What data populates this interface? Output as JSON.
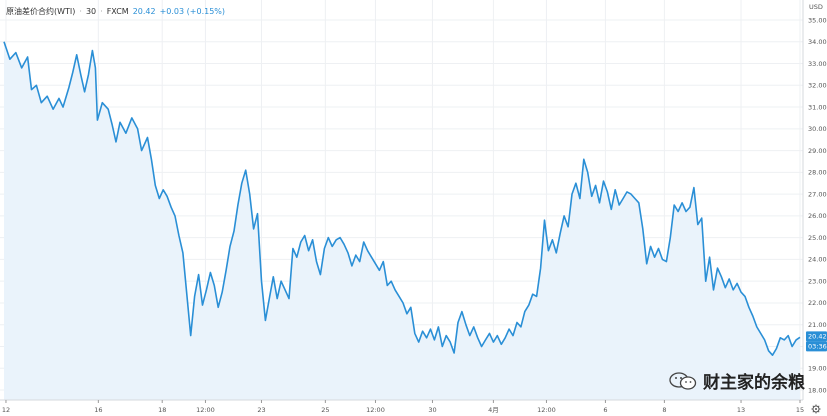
{
  "header": {
    "symbol": "原油差价合约(WTI)",
    "interval": "30",
    "exchange": "FXCM",
    "price": "20.42",
    "change": "+0.03 (+0.15%)"
  },
  "watermark": {
    "text": "财主家的余粮"
  },
  "colors": {
    "line": "#2a8fd6",
    "area": "#eaf3fb",
    "grid": "#eef0f3",
    "axis_text": "#555555"
  },
  "chart_data": {
    "type": "area",
    "title": "",
    "xlabel": "",
    "ylabel": "USD",
    "ylim": [
      18.0,
      35.0
    ],
    "y_ticks": [
      "35.00",
      "34.00",
      "33.00",
      "32.00",
      "31.00",
      "30.00",
      "29.00",
      "28.00",
      "27.00",
      "26.00",
      "25.00",
      "24.00",
      "23.00",
      "22.00",
      "21.00",
      "20.00",
      "19.00",
      "18.00"
    ],
    "x_ticks": [
      {
        "label": "12",
        "idx": 2
      },
      {
        "label": "16",
        "idx": 96
      },
      {
        "label": "18",
        "idx": 161
      },
      {
        "label": "12:00",
        "idx": 205
      },
      {
        "label": "23",
        "idx": 262
      },
      {
        "label": "25",
        "idx": 327
      },
      {
        "label": "12:00",
        "idx": 378
      },
      {
        "label": "30",
        "idx": 436
      },
      {
        "label": "4月",
        "idx": 498
      },
      {
        "label": "12:00",
        "idx": 552
      },
      {
        "label": "6",
        "idx": 612
      },
      {
        "label": "8",
        "idx": 672
      },
      {
        "label": "13",
        "idx": 750
      },
      {
        "label": "15",
        "idx": 810
      }
    ],
    "last_price_label": "20.42",
    "countdown_label": "03:36",
    "series": [
      {
        "points": [
          [
            0,
            34.0
          ],
          [
            6,
            33.2
          ],
          [
            12,
            33.5
          ],
          [
            18,
            32.8
          ],
          [
            24,
            33.3
          ],
          [
            28,
            31.8
          ],
          [
            33,
            32.0
          ],
          [
            38,
            31.2
          ],
          [
            44,
            31.5
          ],
          [
            50,
            30.9
          ],
          [
            56,
            31.4
          ],
          [
            60,
            31.0
          ],
          [
            66,
            31.9
          ],
          [
            70,
            32.6
          ],
          [
            74,
            33.4
          ],
          [
            78,
            32.5
          ],
          [
            82,
            31.7
          ],
          [
            86,
            32.5
          ],
          [
            90,
            33.6
          ],
          [
            93,
            32.8
          ],
          [
            95,
            30.4
          ],
          [
            100,
            31.2
          ],
          [
            106,
            30.9
          ],
          [
            110,
            30.2
          ],
          [
            114,
            29.4
          ],
          [
            118,
            30.3
          ],
          [
            124,
            29.8
          ],
          [
            130,
            30.5
          ],
          [
            136,
            30.0
          ],
          [
            140,
            29.0
          ],
          [
            146,
            29.6
          ],
          [
            150,
            28.6
          ],
          [
            154,
            27.4
          ],
          [
            158,
            26.8
          ],
          [
            162,
            27.2
          ],
          [
            166,
            26.9
          ],
          [
            170,
            26.4
          ],
          [
            174,
            26.0
          ],
          [
            178,
            25.1
          ],
          [
            182,
            24.3
          ],
          [
            186,
            22.4
          ],
          [
            190,
            20.5
          ],
          [
            194,
            22.3
          ],
          [
            198,
            23.3
          ],
          [
            202,
            21.9
          ],
          [
            206,
            22.6
          ],
          [
            210,
            23.4
          ],
          [
            214,
            22.8
          ],
          [
            218,
            21.8
          ],
          [
            222,
            22.5
          ],
          [
            226,
            23.5
          ],
          [
            230,
            24.6
          ],
          [
            234,
            25.3
          ],
          [
            238,
            26.5
          ],
          [
            242,
            27.5
          ],
          [
            246,
            28.1
          ],
          [
            250,
            27.0
          ],
          [
            254,
            25.4
          ],
          [
            258,
            26.1
          ],
          [
            262,
            23.0
          ],
          [
            266,
            21.2
          ],
          [
            270,
            22.2
          ],
          [
            274,
            23.2
          ],
          [
            278,
            22.2
          ],
          [
            282,
            23.0
          ],
          [
            286,
            22.6
          ],
          [
            290,
            22.2
          ],
          [
            294,
            24.5
          ],
          [
            298,
            24.1
          ],
          [
            302,
            24.8
          ],
          [
            306,
            25.1
          ],
          [
            310,
            24.4
          ],
          [
            314,
            24.9
          ],
          [
            318,
            23.9
          ],
          [
            322,
            23.3
          ],
          [
            326,
            24.5
          ],
          [
            330,
            25.0
          ],
          [
            334,
            24.6
          ],
          [
            338,
            24.9
          ],
          [
            342,
            25.0
          ],
          [
            346,
            24.7
          ],
          [
            350,
            24.3
          ],
          [
            354,
            23.7
          ],
          [
            358,
            24.2
          ],
          [
            362,
            23.9
          ],
          [
            366,
            24.8
          ],
          [
            370,
            24.4
          ],
          [
            374,
            24.1
          ],
          [
            378,
            23.8
          ],
          [
            382,
            23.5
          ],
          [
            386,
            23.9
          ],
          [
            390,
            22.8
          ],
          [
            394,
            23.0
          ],
          [
            398,
            22.6
          ],
          [
            402,
            22.3
          ],
          [
            406,
            22.0
          ],
          [
            410,
            21.5
          ],
          [
            414,
            21.8
          ],
          [
            418,
            20.6
          ],
          [
            422,
            20.2
          ],
          [
            426,
            20.7
          ],
          [
            430,
            20.4
          ],
          [
            434,
            20.8
          ],
          [
            438,
            20.3
          ],
          [
            442,
            20.9
          ],
          [
            446,
            20.0
          ],
          [
            450,
            20.5
          ],
          [
            454,
            20.2
          ],
          [
            458,
            19.7
          ],
          [
            462,
            21.1
          ],
          [
            466,
            21.6
          ],
          [
            470,
            21.0
          ],
          [
            474,
            20.5
          ],
          [
            478,
            20.9
          ],
          [
            482,
            20.4
          ],
          [
            486,
            20.0
          ],
          [
            490,
            20.3
          ],
          [
            494,
            20.6
          ],
          [
            498,
            20.2
          ],
          [
            502,
            20.5
          ],
          [
            506,
            20.1
          ],
          [
            510,
            20.4
          ],
          [
            514,
            20.8
          ],
          [
            518,
            20.5
          ],
          [
            522,
            21.1
          ],
          [
            526,
            20.9
          ],
          [
            530,
            21.6
          ],
          [
            534,
            21.9
          ],
          [
            538,
            22.4
          ],
          [
            542,
            22.3
          ],
          [
            546,
            23.6
          ],
          [
            550,
            25.8
          ],
          [
            554,
            24.4
          ],
          [
            558,
            24.9
          ],
          [
            562,
            24.3
          ],
          [
            566,
            25.2
          ],
          [
            570,
            26.0
          ],
          [
            574,
            25.5
          ],
          [
            578,
            27.0
          ],
          [
            582,
            27.5
          ],
          [
            586,
            26.8
          ],
          [
            590,
            28.6
          ],
          [
            594,
            28.0
          ],
          [
            598,
            26.9
          ],
          [
            602,
            27.4
          ],
          [
            606,
            26.6
          ],
          [
            610,
            27.6
          ],
          [
            614,
            27.1
          ],
          [
            618,
            26.3
          ],
          [
            622,
            27.2
          ],
          [
            626,
            26.5
          ],
          [
            630,
            26.8
          ],
          [
            634,
            27.1
          ],
          [
            638,
            27.0
          ],
          [
            642,
            26.8
          ],
          [
            646,
            26.6
          ],
          [
            650,
            25.4
          ],
          [
            654,
            23.8
          ],
          [
            658,
            24.6
          ],
          [
            662,
            24.1
          ],
          [
            666,
            24.5
          ],
          [
            670,
            24.0
          ],
          [
            674,
            23.9
          ],
          [
            678,
            25.0
          ],
          [
            682,
            26.5
          ],
          [
            686,
            26.2
          ],
          [
            690,
            26.6
          ],
          [
            694,
            26.2
          ],
          [
            698,
            26.4
          ],
          [
            702,
            27.3
          ],
          [
            706,
            25.6
          ],
          [
            710,
            25.9
          ],
          [
            714,
            23.0
          ],
          [
            718,
            24.1
          ],
          [
            722,
            22.6
          ],
          [
            726,
            23.6
          ],
          [
            730,
            23.2
          ],
          [
            734,
            22.7
          ],
          [
            738,
            23.1
          ],
          [
            742,
            22.6
          ],
          [
            746,
            22.9
          ],
          [
            750,
            22.5
          ],
          [
            754,
            22.3
          ],
          [
            758,
            21.8
          ],
          [
            762,
            21.4
          ],
          [
            766,
            20.9
          ],
          [
            770,
            20.6
          ],
          [
            774,
            20.3
          ],
          [
            778,
            19.8
          ],
          [
            782,
            19.6
          ],
          [
            786,
            19.9
          ],
          [
            790,
            20.4
          ],
          [
            794,
            20.3
          ],
          [
            798,
            20.5
          ],
          [
            802,
            20.0
          ],
          [
            806,
            20.3
          ],
          [
            810,
            20.42
          ]
        ]
      }
    ]
  }
}
